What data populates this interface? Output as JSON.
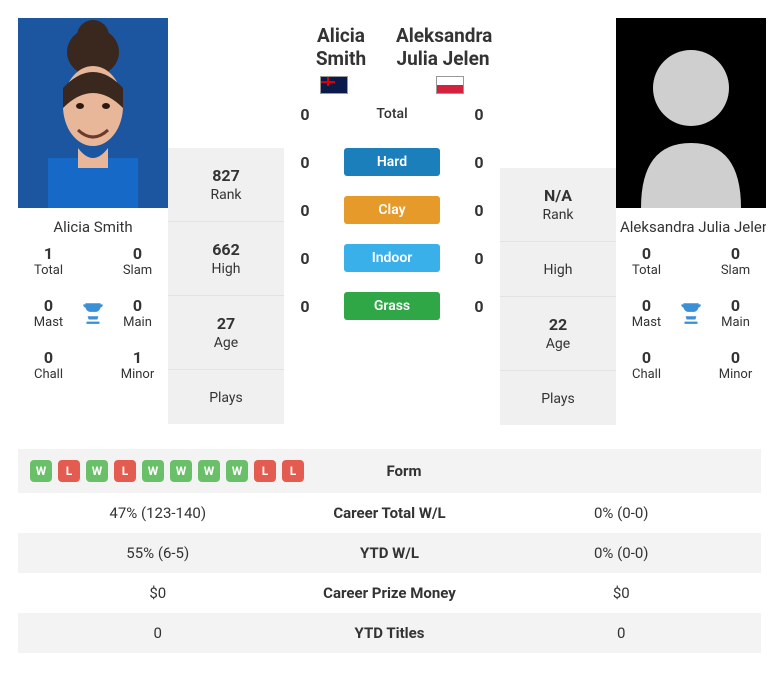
{
  "player1": {
    "name": "Alicia Smith",
    "flag": "au",
    "photo_bg": "#1c56a0",
    "titles": {
      "total": {
        "n": "1",
        "l": "Total"
      },
      "slam": {
        "n": "0",
        "l": "Slam"
      },
      "mast": {
        "n": "0",
        "l": "Mast"
      },
      "main": {
        "n": "0",
        "l": "Main"
      },
      "chall": {
        "n": "0",
        "l": "Chall"
      },
      "minor": {
        "n": "1",
        "l": "Minor"
      }
    },
    "stats": {
      "rank": {
        "v": "827",
        "l": "Rank"
      },
      "high": {
        "v": "662",
        "l": "High"
      },
      "age": {
        "v": "27",
        "l": "Age"
      },
      "plays": {
        "v": "",
        "l": "Plays"
      }
    },
    "form": [
      "W",
      "L",
      "W",
      "L",
      "W",
      "W",
      "W",
      "W",
      "L",
      "L"
    ],
    "cmp": {
      "career_wl": "47% (123-140)",
      "ytd_wl": "55% (6-5)",
      "prize": "$0",
      "ytd_titles": "0"
    }
  },
  "player2": {
    "name": "Aleksandra Julia Jelen",
    "short_name": "Aleksandra Julia Jelen",
    "flag": "pl",
    "titles": {
      "total": {
        "n": "0",
        "l": "Total"
      },
      "slam": {
        "n": "0",
        "l": "Slam"
      },
      "mast": {
        "n": "0",
        "l": "Mast"
      },
      "main": {
        "n": "0",
        "l": "Main"
      },
      "chall": {
        "n": "0",
        "l": "Chall"
      },
      "minor": {
        "n": "0",
        "l": "Minor"
      }
    },
    "stats": {
      "rank": {
        "v": "N/A",
        "l": "Rank"
      },
      "high": {
        "v": "",
        "l": "High"
      },
      "age": {
        "v": "22",
        "l": "Age"
      },
      "plays": {
        "v": "",
        "l": "Plays"
      }
    },
    "form": [],
    "cmp": {
      "career_wl": "0% (0-0)",
      "ytd_wl": "0% (0-0)",
      "prize": "$0",
      "ytd_titles": "0"
    }
  },
  "h2h": {
    "total": {
      "l": "Total",
      "p1": "0",
      "p2": "0"
    },
    "hard": {
      "l": "Hard",
      "p1": "0",
      "p2": "0"
    },
    "clay": {
      "l": "Clay",
      "p1": "0",
      "p2": "0"
    },
    "indoor": {
      "l": "Indoor",
      "p1": "0",
      "p2": "0"
    },
    "grass": {
      "l": "Grass",
      "p1": "0",
      "p2": "0"
    }
  },
  "cmp_labels": {
    "form": "Form",
    "career_wl": "Career Total W/L",
    "ytd_wl": "YTD W/L",
    "prize": "Career Prize Money",
    "ytd_titles": "YTD Titles"
  },
  "colors": {
    "hard": "#1b7fbc",
    "clay": "#e59a2a",
    "indoor": "#39b0ea",
    "grass": "#2fa747",
    "chip_w": "#6abf69",
    "chip_l": "#e45b4f",
    "trophy": "#3b8fd6"
  }
}
